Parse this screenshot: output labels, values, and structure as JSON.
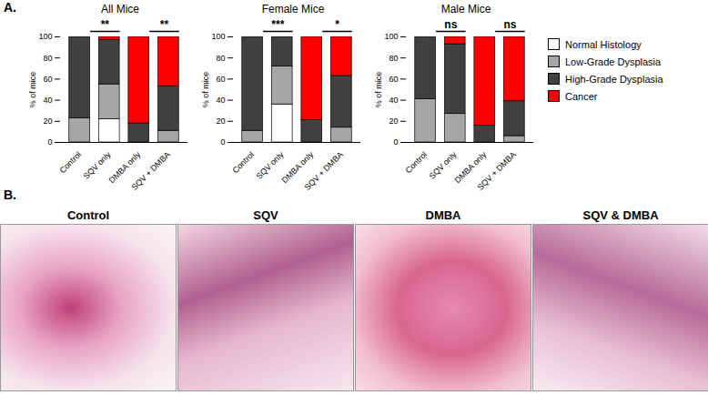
{
  "chart_data": [
    {
      "type": "bar",
      "stacked": true,
      "panel": "A.",
      "title": "All Mice",
      "ylabel": "% of mice",
      "categories": [
        "Control",
        "SQV only",
        "DMBA only",
        "SQV + DMBA"
      ],
      "series": [
        {
          "name": "Normal Histology",
          "color": "#ffffff",
          "values": [
            0,
            22,
            0,
            0
          ]
        },
        {
          "name": "Low-Grade Dysplasia",
          "color": "#a6a6a6",
          "values": [
            23,
            33,
            0,
            11
          ]
        },
        {
          "name": "High-Grade Dysplasia",
          "color": "#404040",
          "values": [
            77,
            42,
            18,
            42
          ]
        },
        {
          "name": "Cancer",
          "color": "#ff0000",
          "values": [
            0,
            3,
            82,
            47
          ]
        }
      ],
      "ylim": [
        0,
        100
      ],
      "yticks": [
        0,
        20,
        40,
        60,
        80,
        100
      ],
      "annotations": [
        {
          "from": "Control",
          "to": "SQV only",
          "label": "**"
        },
        {
          "from": "DMBA only",
          "to": "SQV + DMBA",
          "label": "**"
        }
      ]
    },
    {
      "type": "bar",
      "stacked": true,
      "title": "Female Mice",
      "ylabel": "% of mice",
      "categories": [
        "Control",
        "SQV only",
        "DMBA only",
        "SQV + DMBA"
      ],
      "series": [
        {
          "name": "Normal Histology",
          "color": "#ffffff",
          "values": [
            0,
            36,
            0,
            0
          ]
        },
        {
          "name": "Low-Grade Dysplasia",
          "color": "#a6a6a6",
          "values": [
            11,
            36,
            0,
            14
          ]
        },
        {
          "name": "High-Grade Dysplasia",
          "color": "#404040",
          "values": [
            89,
            28,
            21,
            49
          ]
        },
        {
          "name": "Cancer",
          "color": "#ff0000",
          "values": [
            0,
            0,
            79,
            37
          ]
        }
      ],
      "ylim": [
        0,
        100
      ],
      "yticks": [
        0,
        20,
        40,
        60,
        80,
        100
      ],
      "annotations": [
        {
          "from": "Control",
          "to": "SQV only",
          "label": "***"
        },
        {
          "from": "DMBA only",
          "to": "SQV + DMBA",
          "label": "*"
        }
      ]
    },
    {
      "type": "bar",
      "stacked": true,
      "title": "Male Mice",
      "ylabel": "% of mice",
      "legend": "right",
      "categories": [
        "Control",
        "SQV only",
        "DMBA only",
        "SQV + DMBA"
      ],
      "series": [
        {
          "name": "Normal Histology",
          "color": "#ffffff",
          "values": [
            0,
            0,
            0,
            0
          ]
        },
        {
          "name": "Low-Grade Dysplasia",
          "color": "#a6a6a6",
          "values": [
            41,
            27,
            0,
            6
          ]
        },
        {
          "name": "High-Grade Dysplasia",
          "color": "#404040",
          "values": [
            59,
            66,
            16,
            33
          ]
        },
        {
          "name": "Cancer",
          "color": "#ff0000",
          "values": [
            0,
            7,
            84,
            61
          ]
        }
      ],
      "ylim": [
        0,
        100
      ],
      "yticks": [
        0,
        20,
        40,
        60,
        80,
        100
      ],
      "annotations": [
        {
          "from": "Control",
          "to": "SQV only",
          "label": "ns"
        },
        {
          "from": "DMBA only",
          "to": "SQV + DMBA",
          "label": "ns"
        }
      ]
    },
    {
      "type": "image",
      "panel": "B.",
      "titles": [
        "Control",
        "SQV",
        "DMBA",
        "SQV & DMBA"
      ]
    }
  ]
}
